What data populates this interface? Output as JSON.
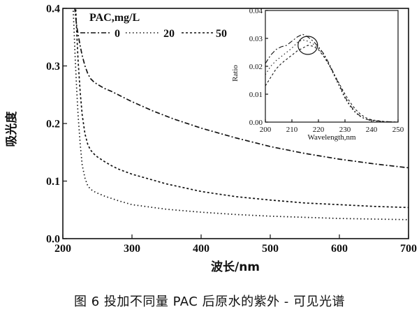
{
  "chart_data": [
    {
      "type": "line",
      "xlabel": "波长/nm",
      "ylabel": "吸光度",
      "xlim": [
        200,
        700
      ],
      "ylim": [
        0.0,
        0.4
      ],
      "xticks": [
        "200",
        "300",
        "400",
        "500",
        "600",
        "700"
      ],
      "yticks": [
        "0.0",
        "0.1",
        "0.2",
        "0.3",
        "0.4"
      ],
      "legend_title": "PAC,mg/L",
      "legend_position": "top-left",
      "series": [
        {
          "name": "0",
          "style": "dash-dot",
          "x": [
            216,
            218,
            220,
            222,
            225,
            228,
            232,
            236,
            240,
            245,
            250,
            260,
            270,
            280,
            300,
            330,
            360,
            400,
            450,
            500,
            550,
            600,
            650,
            700
          ],
          "y": [
            0.42,
            0.39,
            0.37,
            0.355,
            0.335,
            0.318,
            0.3,
            0.287,
            0.278,
            0.272,
            0.268,
            0.261,
            0.256,
            0.25,
            0.238,
            0.222,
            0.208,
            0.192,
            0.175,
            0.16,
            0.148,
            0.138,
            0.13,
            0.123
          ]
        },
        {
          "name": "20",
          "style": "dot",
          "x": [
            214,
            216,
            218,
            220,
            222,
            225,
            228,
            232,
            236,
            240,
            245,
            250,
            260,
            280,
            300,
            350,
            400,
            450,
            500,
            600,
            700
          ],
          "y": [
            0.42,
            0.37,
            0.31,
            0.26,
            0.215,
            0.165,
            0.128,
            0.105,
            0.092,
            0.086,
            0.082,
            0.079,
            0.074,
            0.066,
            0.059,
            0.051,
            0.046,
            0.042,
            0.039,
            0.035,
            0.033
          ]
        },
        {
          "name": "50",
          "style": "short-dash",
          "x": [
            218,
            220,
            222,
            225,
            228,
            232,
            236,
            240,
            245,
            250,
            260,
            270,
            280,
            300,
            350,
            400,
            450,
            500,
            550,
            600,
            650,
            700
          ],
          "y": [
            0.42,
            0.36,
            0.31,
            0.255,
            0.215,
            0.182,
            0.164,
            0.154,
            0.147,
            0.142,
            0.134,
            0.127,
            0.121,
            0.112,
            0.095,
            0.082,
            0.073,
            0.067,
            0.062,
            0.059,
            0.056,
            0.054
          ]
        }
      ]
    },
    {
      "type": "line",
      "xlabel": "Wavelength,nm",
      "ylabel": "Ratio",
      "xlim": [
        200,
        250
      ],
      "ylim": [
        0.0,
        0.04
      ],
      "xticks": [
        "200",
        "210",
        "220",
        "230",
        "240",
        "250"
      ],
      "yticks": [
        "0.00",
        "0.01",
        "0.02",
        "0.03",
        "0.04"
      ],
      "annotation": "circle around peak near 215 nm",
      "annotation_center": [
        216,
        0.0275
      ],
      "series": [
        {
          "style": "dash-dot",
          "x": [
            200,
            202,
            204,
            206,
            208,
            210,
            212,
            214,
            216,
            218,
            220,
            222,
            224,
            226,
            228,
            230,
            232,
            234,
            236,
            238,
            240,
            245,
            250
          ],
          "y": [
            0.021,
            0.024,
            0.026,
            0.027,
            0.0275,
            0.029,
            0.0305,
            0.0315,
            0.0305,
            0.029,
            0.027,
            0.0245,
            0.021,
            0.017,
            0.013,
            0.009,
            0.006,
            0.0035,
            0.002,
            0.001,
            0.0006,
            0.0002,
            0.0
          ]
        },
        {
          "style": "dot",
          "x": [
            200,
            202,
            204,
            206,
            208,
            210,
            212,
            214,
            216,
            218,
            220,
            222,
            224,
            226,
            228,
            230,
            232,
            234,
            236,
            238,
            240,
            245,
            250
          ],
          "y": [
            0.017,
            0.02,
            0.022,
            0.0235,
            0.025,
            0.0265,
            0.0285,
            0.0295,
            0.029,
            0.028,
            0.0265,
            0.024,
            0.0205,
            0.0165,
            0.0125,
            0.0085,
            0.0055,
            0.0033,
            0.0018,
            0.001,
            0.0005,
            0.0001,
            0.0
          ]
        },
        {
          "style": "short-dash",
          "x": [
            200,
            202,
            204,
            206,
            208,
            210,
            212,
            214,
            216,
            218,
            220,
            222,
            224,
            226,
            228,
            230,
            232,
            234,
            236,
            238,
            240,
            245,
            250
          ],
          "y": [
            0.013,
            0.016,
            0.019,
            0.021,
            0.0225,
            0.024,
            0.0255,
            0.0265,
            0.0275,
            0.0272,
            0.026,
            0.0235,
            0.0205,
            0.017,
            0.0135,
            0.01,
            0.007,
            0.0045,
            0.0027,
            0.0015,
            0.0008,
            0.0002,
            0.0
          ]
        }
      ]
    }
  ],
  "caption": "图 6   投加不同量 PAC 后原水的紫外 - 可见光谱"
}
